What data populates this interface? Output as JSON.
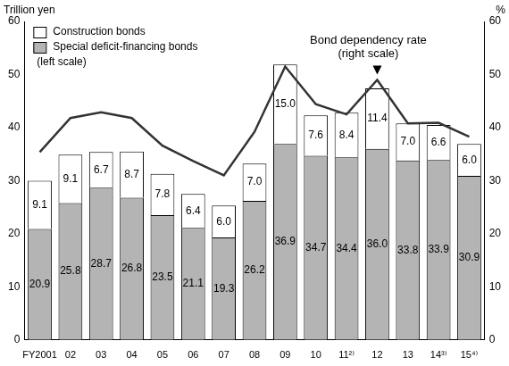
{
  "chart_data": {
    "type": "bar",
    "stacked": true,
    "data_labels": true,
    "grid": false,
    "legend": "upper left",
    "legend_note": "(left scale)",
    "y_label": "Trillion yen",
    "y2_label": "%",
    "categories": [
      "FY2001",
      "02",
      "03",
      "04",
      "05",
      "06",
      "07",
      "08",
      "09",
      "10",
      "11²⁾",
      "12",
      "13",
      "14³⁾",
      "15⁴⁾"
    ],
    "ylim": [
      0,
      60
    ],
    "yticks": [
      0,
      10,
      20,
      30,
      40,
      50,
      60
    ],
    "y2lim": [
      0,
      60
    ],
    "y2ticks": [
      0,
      10,
      20,
      30,
      40,
      50,
      60
    ],
    "annotation": {
      "text": [
        "Bond dependency rate",
        "(right scale)"
      ],
      "category": "12"
    },
    "series": [
      {
        "name": "Construction bonds",
        "type": "bar",
        "color": "#ffffff",
        "values": [
          9.1,
          9.1,
          6.7,
          8.7,
          7.8,
          6.4,
          6.0,
          7.0,
          15.0,
          7.6,
          8.4,
          11.4,
          7.0,
          6.6,
          6.0
        ],
        "value_labels": [
          "9.1",
          "9.1",
          "6.7",
          "8.7",
          "7.8",
          "6.4",
          "6.0",
          "7.0",
          "15.0",
          "7.6",
          "8.4",
          "11.4",
          "7.0",
          "6.6",
          "6.0"
        ]
      },
      {
        "name": "Special deficit-financing bonds",
        "type": "bar",
        "color": "#b4b4b4",
        "values": [
          20.9,
          25.8,
          28.7,
          26.8,
          23.5,
          21.1,
          19.3,
          26.2,
          36.9,
          34.7,
          34.4,
          36.0,
          33.8,
          33.9,
          30.9
        ],
        "value_labels": [
          "20.9",
          "25.8",
          "28.7",
          "26.8",
          "23.5",
          "21.1",
          "19.3",
          "26.2",
          "36.9",
          "34.7",
          "34.4",
          "36.0",
          "33.8",
          "33.9",
          "30.9"
        ]
      },
      {
        "type": "line",
        "axis": "y2",
        "color": "#333333",
        "line_style": "solid",
        "marker": "none",
        "values": [
          35.4,
          41.8,
          42.9,
          41.8,
          36.6,
          33.7,
          31.0,
          39.2,
          51.5,
          44.4,
          42.5,
          49.0,
          40.8,
          40.9,
          38.3
        ]
      }
    ]
  }
}
